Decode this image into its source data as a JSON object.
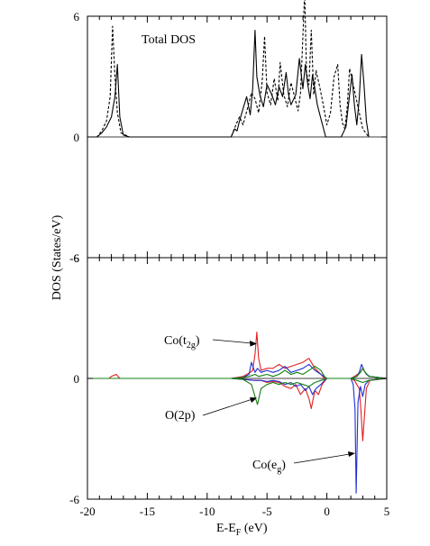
{
  "chart_data": [
    {
      "type": "line",
      "panel": "top",
      "title": "Total DOS",
      "ylabel": "DOS (States/eV)",
      "xlim": [
        -20,
        5
      ],
      "ylim": [
        -6,
        6
      ],
      "yticks": [
        "6",
        "0",
        "-6"
      ],
      "series": [
        {
          "style": "solid",
          "color": "#000000",
          "x": [
            -20,
            -19.2,
            -18.8,
            -18.4,
            -18.0,
            -17.7,
            -17.5,
            -17.3,
            -17.0,
            -16.5,
            -8.0,
            -7.7,
            -7.5,
            -7.3,
            -7.0,
            -6.7,
            -6.4,
            -6.2,
            -6.0,
            -5.85,
            -5.6,
            -5.3,
            -5.0,
            -4.6,
            -4.3,
            -4.0,
            -3.7,
            -3.4,
            -3.2,
            -3.0,
            -2.6,
            -2.3,
            -2.0,
            -1.8,
            -1.6,
            -1.4,
            -1.2,
            -1.0,
            -0.8,
            -0.5,
            -0.1,
            0.3,
            0.8,
            1.2,
            1.6,
            1.9,
            2.1,
            2.3,
            2.5,
            2.7,
            2.9,
            3.1,
            3.3,
            3.5
          ],
          "y": [
            0,
            0,
            0.2,
            0.5,
            1.0,
            2.0,
            3.6,
            1.0,
            0.1,
            0,
            0,
            0.4,
            0.3,
            0.8,
            1.4,
            2.0,
            1.1,
            2.4,
            5.3,
            3.0,
            2.1,
            1.5,
            2.6,
            2.1,
            1.6,
            2.5,
            2.0,
            3.2,
            2.1,
            1.6,
            2.1,
            3.9,
            2.4,
            3.6,
            2.6,
            1.9,
            3.1,
            2.4,
            1.6,
            0.9,
            0,
            0,
            0,
            0,
            0.5,
            2.1,
            3.1,
            1.6,
            0.6,
            1.9,
            4.1,
            2.6,
            0.8,
            0
          ]
        },
        {
          "style": "dashed",
          "color": "#000000",
          "x": [
            -20,
            -19.2,
            -18.8,
            -18.4,
            -18.1,
            -17.9,
            -17.7,
            -17.5,
            -17.2,
            -16.5,
            -8.0,
            -7.6,
            -7.3,
            -7.0,
            -6.6,
            -6.3,
            -6.0,
            -5.7,
            -5.4,
            -5.2,
            -5.0,
            -4.7,
            -4.4,
            -4.1,
            -3.9,
            -3.6,
            -3.3,
            -3.0,
            -2.7,
            -2.4,
            -2.2,
            -2.0,
            -1.85,
            -1.7,
            -1.5,
            -1.3,
            -1.1,
            -0.9,
            -0.6,
            -0.3,
            0.0,
            0.3,
            0.6,
            0.9,
            1.1,
            1.3,
            1.5,
            1.7,
            1.9,
            2.2,
            2.6,
            3.0,
            3.5
          ],
          "y": [
            0,
            0,
            0.3,
            0.8,
            2.0,
            5.5,
            3.0,
            1.2,
            0.2,
            0,
            0,
            0.6,
            1.0,
            0.6,
            1.5,
            2.2,
            1.9,
            1.2,
            2.8,
            5.0,
            2.2,
            1.6,
            2.9,
            1.8,
            3.7,
            2.1,
            1.5,
            2.7,
            2.0,
            1.3,
            2.2,
            5.0,
            7.2,
            3.2,
            2.6,
            5.3,
            2.1,
            3.3,
            2.5,
            1.6,
            0.6,
            1.2,
            3.0,
            3.6,
            1.6,
            0.7,
            0.4,
            1.5,
            3.4,
            2.6,
            1.5,
            0.4,
            0
          ]
        }
      ]
    },
    {
      "type": "line",
      "panel": "bottom",
      "xlabel": "E-E_F (eV)",
      "xlim": [
        -20,
        5
      ],
      "ylim": [
        -6,
        6
      ],
      "xticks": [
        "-20",
        "-15",
        "-10",
        "-5",
        "0",
        "5"
      ],
      "yticks": [
        "6",
        "0",
        "-6"
      ],
      "annotations": {
        "t2g": {
          "main": "Co(t",
          "sub": "2g",
          "close": ")"
        },
        "o2p": {
          "text": "O(2p)"
        },
        "eg": {
          "main": "Co(e",
          "sub": "g",
          "close": ")"
        }
      },
      "series": [
        {
          "color": "#e02020",
          "x": [
            -20,
            -18.2,
            -18.0,
            -17.6,
            -17.3,
            -8.0,
            -7.0,
            -6.4,
            -6.2,
            -6.0,
            -5.85,
            -5.7,
            -5.5,
            -5.0,
            -4.5,
            -4.0,
            -3.5,
            -3.0,
            -2.5,
            -2.0,
            -1.5,
            -1.0,
            -0.5,
            -0.2,
            0,
            1.0,
            2.0,
            2.3,
            2.55,
            2.8,
            3.0,
            3.2,
            3.5,
            5.0
          ],
          "y": [
            0,
            0,
            0.1,
            0.2,
            0,
            0,
            0.1,
            0.3,
            0.4,
            1.2,
            2.3,
            1.0,
            0.4,
            0.5,
            0.5,
            0.7,
            0.5,
            0.6,
            0.7,
            0.8,
            1.0,
            0.5,
            0.2,
            0,
            0,
            0,
            0,
            0.1,
            0.2,
            0.3,
            0.5,
            0.3,
            0.1,
            0
          ]
        },
        {
          "color": "#2030d0",
          "x": [
            -20,
            -8.0,
            -7.0,
            -6.5,
            -6.3,
            -6.0,
            -5.8,
            -5.5,
            -5.0,
            -4.5,
            -4.0,
            -3.5,
            -3.0,
            -2.5,
            -2.0,
            -1.5,
            -1.0,
            -0.5,
            0,
            2.0,
            2.5,
            2.7,
            2.9,
            3.1,
            3.3,
            3.6,
            5.0
          ],
          "y": [
            0,
            0,
            0.05,
            0.2,
            0.8,
            0.3,
            0.5,
            0.3,
            0.4,
            0.3,
            0.4,
            0.6,
            0.3,
            0.4,
            0.5,
            0.7,
            0.4,
            0.2,
            0,
            0,
            0.1,
            0.3,
            0.7,
            0.4,
            0.2,
            0.1,
            0
          ]
        },
        {
          "color": "#108010",
          "x": [
            -20,
            -8.0,
            -7.0,
            -6.5,
            -6.0,
            -5.7,
            -5.0,
            -4.5,
            -4.0,
            -3.5,
            -3.0,
            -2.5,
            -2.0,
            -1.5,
            -1.0,
            -0.5,
            -0.2,
            0,
            2.0,
            2.5,
            2.8,
            3.0,
            3.2,
            3.5,
            5.0
          ],
          "y": [
            0,
            0,
            0.05,
            0.1,
            0.2,
            0.1,
            0.2,
            0.1,
            0.2,
            0.4,
            0.2,
            0.3,
            0.2,
            0.4,
            0.6,
            0.4,
            0.1,
            0,
            0,
            0.1,
            0.3,
            0.5,
            0.3,
            0.1,
            0
          ]
        },
        {
          "color": "#e02020",
          "x": [
            -20,
            -8.0,
            -7.0,
            -6.0,
            -5.5,
            -5.0,
            -4.5,
            -4.0,
            -3.5,
            -3.0,
            -2.6,
            -2.2,
            -1.8,
            -1.5,
            -1.3,
            -1.0,
            -0.7,
            -0.4,
            0,
            2.0,
            2.3,
            2.5,
            2.7,
            2.85,
            3.0,
            3.3,
            3.6,
            5.0
          ],
          "y": [
            0,
            0,
            -0.05,
            -0.1,
            -0.1,
            -0.2,
            -0.15,
            -0.2,
            -0.4,
            -0.5,
            -0.3,
            -0.8,
            -0.5,
            -1.0,
            -1.5,
            -0.6,
            -0.8,
            -0.3,
            0,
            0,
            -0.1,
            -0.3,
            -0.5,
            -1.6,
            -3.1,
            -0.5,
            -0.1,
            0
          ]
        },
        {
          "color": "#2030d0",
          "x": [
            -20,
            -8.0,
            -7.0,
            -6.0,
            -5.5,
            -5.0,
            -4.5,
            -4.0,
            -3.5,
            -3.0,
            -2.6,
            -2.2,
            -1.8,
            -1.5,
            -1.2,
            -0.9,
            -0.5,
            -0.2,
            0,
            2.0,
            2.2,
            2.35,
            2.45,
            2.6,
            2.8,
            3.0,
            3.2,
            3.5,
            5.0
          ],
          "y": [
            0,
            0,
            -0.05,
            -0.1,
            -0.1,
            -0.15,
            -0.1,
            -0.15,
            -0.3,
            -0.2,
            -0.4,
            -0.3,
            -0.6,
            -0.4,
            -0.8,
            -0.5,
            -0.3,
            -0.1,
            0,
            0,
            -0.3,
            -1.5,
            -5.7,
            -1.2,
            -0.4,
            -0.9,
            -0.3,
            -0.1,
            0
          ]
        },
        {
          "color": "#108010",
          "x": [
            -20,
            -8.0,
            -7.0,
            -6.3,
            -6.0,
            -5.8,
            -5.5,
            -5.0,
            -4.5,
            -4.0,
            -3.5,
            -3.0,
            -2.5,
            -2.0,
            -1.5,
            -1.0,
            -0.5,
            0,
            2.0,
            2.5,
            3.0,
            3.5,
            5.0
          ],
          "y": [
            0,
            0,
            -0.05,
            -0.3,
            -0.9,
            -1.3,
            -0.5,
            -0.3,
            -0.2,
            -0.3,
            -0.2,
            -0.3,
            -0.2,
            -0.3,
            -0.4,
            -0.2,
            -0.1,
            0,
            0,
            -0.1,
            -0.2,
            -0.1,
            0
          ]
        }
      ]
    }
  ]
}
